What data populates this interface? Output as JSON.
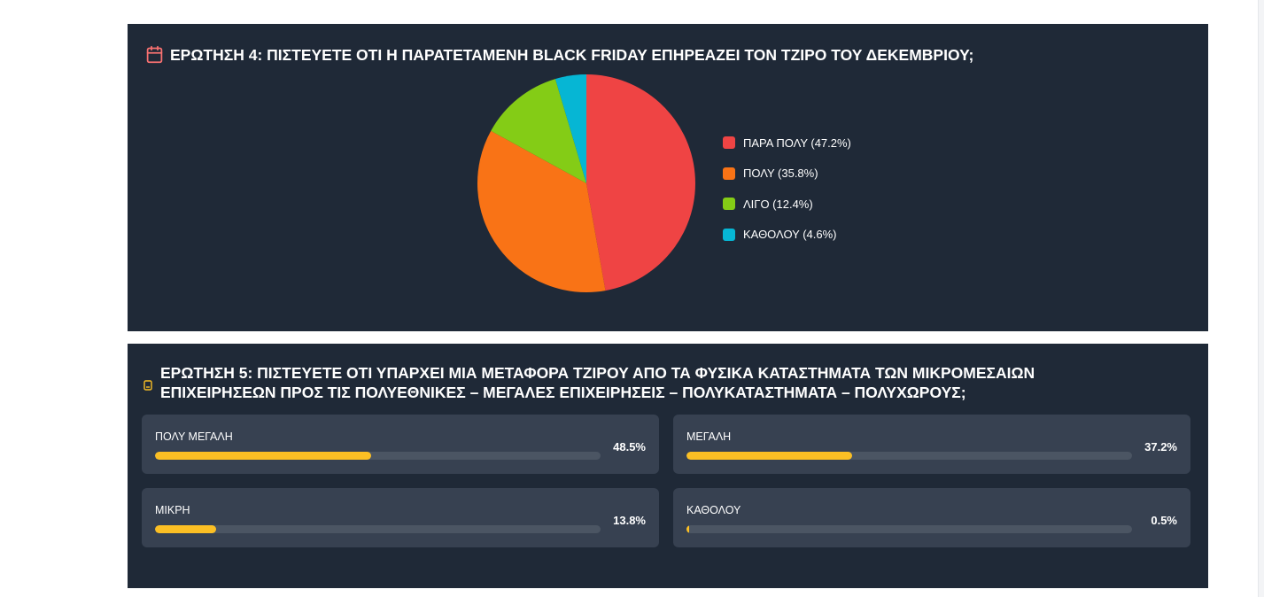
{
  "q4": {
    "title": "ΕΡΩΤΗΣΗ 4: ΠΙΣΤΕΥΕΤΕ ΟΤΙ Η ΠΑΡΑΤΕΤΑΜΕΝΗ BLACK FRIDAY ΕΠΗΡΕΑΖΕΙ ΤΟΝ ΤΖΙΡΟ ΤΟΥ ΔΕΚΕΜΒΡΙΟΥ;",
    "icon": "calendar-icon",
    "icon_color": "#f87171"
  },
  "q5": {
    "title": "ΕΡΩΤΗΣΗ 5: ΠΙΣΤΕΥΕΤΕ ΟΤΙ ΥΠΑΡΧΕΙ ΜΙΑ ΜΕΤΑΦΟΡΑ ΤΖΙΡΟΥ ΑΠΟ ΤΑ ΦΥΣΙΚΑ ΚΑΤΑΣΤΗΜΑΤΑ ΤΩΝ ΜΙΚΡΟΜΕΣΑΙΩΝ ΕΠΙΧΕΙΡΗΣΕΩΝ ΠΡΟΣ ΤΙΣ ΠΟΛΥΕΘΝΙΚΕΣ – ΜΕΓΑΛΕΣ ΕΠΙΧΕΙΡΗΣΕΙΣ – ΠΟΛΥΚΑΤΑΣΤΗΜΑΤΑ – ΠΟΛΥΧΩΡΟΥΣ;",
    "icon": "document-icon",
    "icon_color": "#fbbf24",
    "cards": [
      {
        "label": "ΠΟΛΥ ΜΕΓΑΛΗ",
        "pct": "48.5%"
      },
      {
        "label": "ΜΕΓΑΛΗ",
        "pct": "37.2%"
      },
      {
        "label": "ΜΙΚΡΗ",
        "pct": "13.8%"
      },
      {
        "label": "ΚΑΘΟΛΟΥ",
        "pct": "0.5%"
      }
    ]
  },
  "colors": {
    "panel_bg": "#1f2937",
    "card_bg": "#374151",
    "bar_fill": "#fbbf24",
    "bar_track": "#4b5563"
  },
  "chart_data": [
    {
      "type": "pie",
      "title": "ΕΡΩΤΗΣΗ 4: ΠΙΣΤΕΥΕΤΕ ΟΤΙ Η ΠΑΡΑΤΕΤΑΜΕΝΗ BLACK FRIDAY ΕΠΗΡΕΑΖΕΙ ΤΟΝ ΤΖΙΡΟ ΤΟΥ ΔΕΚΕΜΒΡΙΟΥ;",
      "categories": [
        "ΠΑΡΑ ΠΟΛΥ",
        "ΠΟΛΥ",
        "ΛΙΓΟ",
        "ΚΑΘΟΛΟΥ"
      ],
      "values": [
        47.2,
        35.8,
        12.4,
        4.6
      ],
      "legend_labels": [
        "ΠΑΡΑ ΠΟΛΥ (47.2%)",
        "ΠΟΛΥ (35.8%)",
        "ΛΙΓΟ (12.4%)",
        "ΚΑΘΟΛΟΥ (4.6%)"
      ],
      "colors": [
        "#ef4444",
        "#f97316",
        "#84cc16",
        "#06b6d4"
      ],
      "legend_position": "right"
    },
    {
      "type": "bar",
      "orientation": "horizontal",
      "title": "ΕΡΩΤΗΣΗ 5: ΠΙΣΤΕΥΕΤΕ ΟΤΙ ΥΠΑΡΧΕΙ ΜΙΑ ΜΕΤΑΦΟΡΑ ΤΖΙΡΟΥ ΑΠΟ ΤΑ ΦΥΣΙΚΑ ΚΑΤΑΣΤΗΜΑΤΑ ΤΩΝ ΜΙΚΡΟΜΕΣΑΙΩΝ ΕΠΙΧΕΙΡΗΣΕΩΝ ΠΡΟΣ ΤΙΣ ΠΟΛΥΕΘΝΙΚΕΣ – ΜΕΓΑΛΕΣ ΕΠΙΧΕΙΡΗΣΕΙΣ – ΠΟΛΥΚΑΤΑΣΤΗΜΑΤΑ – ΠΟΛΥΧΩΡΟΥΣ;",
      "categories": [
        "ΠΟΛΥ ΜΕΓΑΛΗ",
        "ΜΕΓΑΛΗ",
        "ΜΙΚΡΗ",
        "ΚΑΘΟΛΟΥ"
      ],
      "values": [
        48.5,
        37.2,
        13.8,
        0.5
      ],
      "ylim": [
        0,
        100
      ]
    }
  ]
}
